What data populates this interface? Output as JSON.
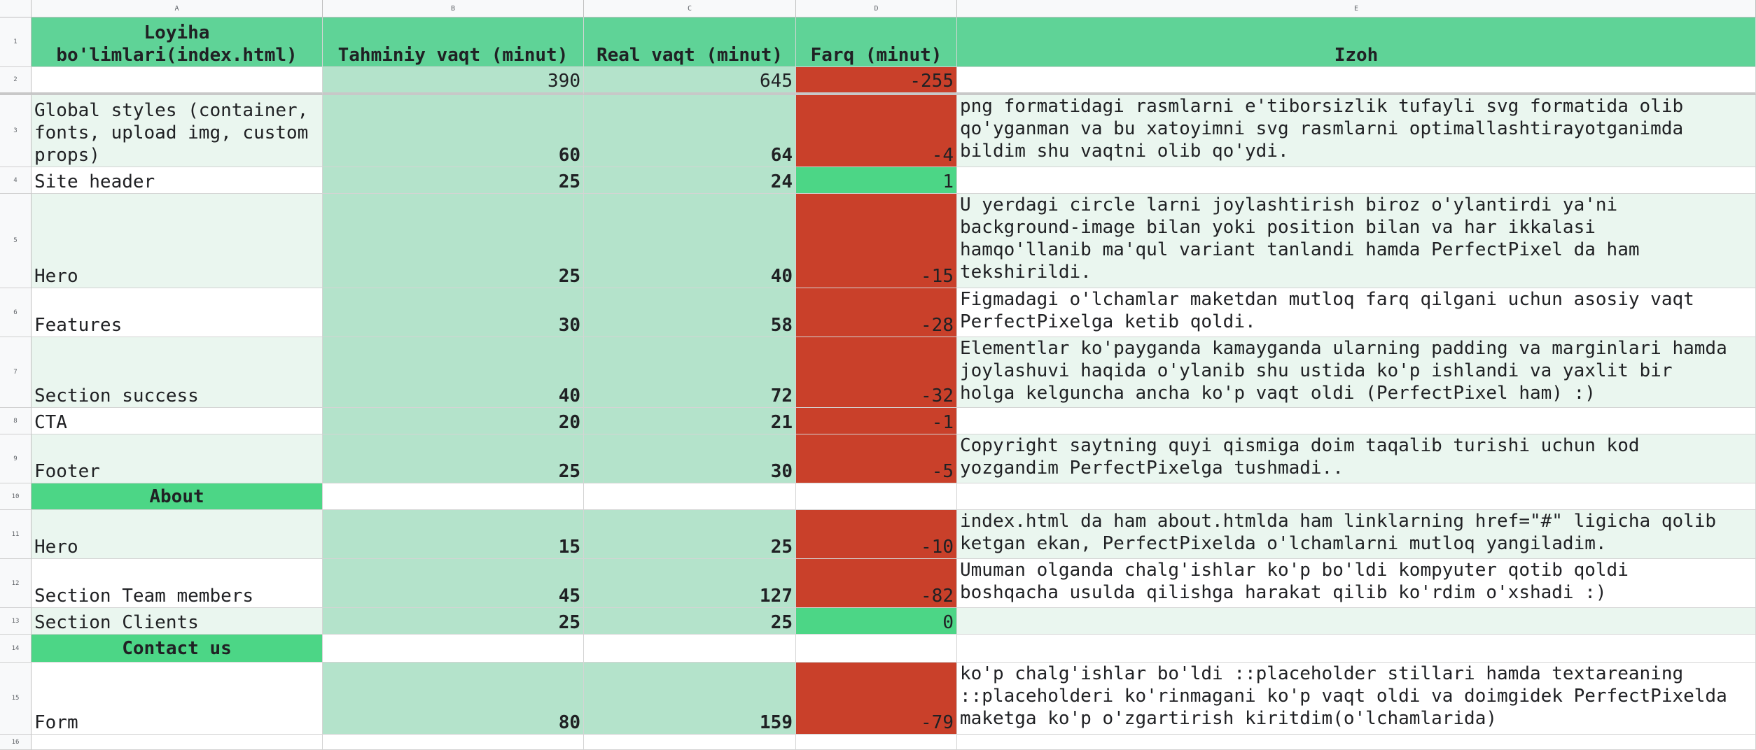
{
  "columns": [
    "A",
    "B",
    "C",
    "D",
    "E"
  ],
  "header": {
    "col_a": "Loyiha\nbo'limlari(index.html)",
    "col_b": "Tahminiy vaqt (minut)",
    "col_c": "Real vaqt (minut)",
    "col_d": "Farq (minut)",
    "col_e": "Izoh"
  },
  "totals": {
    "estimated": "390",
    "real": "645",
    "diff": "-255"
  },
  "rows": [
    {
      "num": "3",
      "part": "Global styles (container,\nfonts, upload img, custom\nprops)",
      "estimated": "60",
      "real": "64",
      "diff": "-4",
      "note": "png formatidagi rasmlarni e'tiborsizlik tufayli svg formatida olib\nqo'yganman va bu xatoyimni svg rasmlarni optimallashtirayotganimda\nbildim shu vaqtni olib qo'ydi."
    },
    {
      "num": "4",
      "part": "Site header",
      "estimated": "25",
      "real": "24",
      "diff": "1",
      "note": ""
    },
    {
      "num": "5",
      "part": "Hero",
      "estimated": "25",
      "real": "40",
      "diff": "-15",
      "note": "U yerdagi circle larni joylashtirish biroz o'ylantirdi ya'ni\nbackground-image bilan yoki position bilan va har ikkalasi\nhamqo'llanib ma'qul variant tanlandi hamda PerfectPixel da ham\ntekshirildi."
    },
    {
      "num": "6",
      "part": "Features",
      "estimated": "30",
      "real": "58",
      "diff": "-28",
      "note": "Figmadagi o'lchamlar maketdan mutloq farq qilgani uchun asosiy vaqt\nPerfectPixelga ketib qoldi."
    },
    {
      "num": "7",
      "part": "Section success",
      "estimated": "40",
      "real": "72",
      "diff": "-32",
      "note": "Elementlar ko'payganda kamayganda ularning padding va marginlari hamda\njoylashuvi haqida o'ylanib shu ustida ko'p ishlandi va yaxlit bir\nholga kelguncha ancha ko'p vaqt oldi (PerfectPixel ham) :)"
    },
    {
      "num": "8",
      "part": "CTA",
      "estimated": "20",
      "real": "21",
      "diff": "-1",
      "note": ""
    },
    {
      "num": "9",
      "part": "Footer",
      "estimated": "25",
      "real": "30",
      "diff": "-5",
      "note": "Copyright saytning quyi qismiga doim taqalib turishi uchun kod\nyozgandim PerfectPixelga tushmadi.."
    },
    {
      "num": "11",
      "part": "Hero",
      "estimated": "15",
      "real": "25",
      "diff": "-10",
      "note": "index.html da ham about.htmlda ham linklarning href=\"#\" ligicha qolib\nketgan ekan, PerfectPixelda o'lchamlarni mutloq yangiladim."
    },
    {
      "num": "12",
      "part": "Section Team members",
      "estimated": "45",
      "real": "127",
      "diff": "-82",
      "note": "Umuman olganda chalg'ishlar ko'p bo'ldi kompyuter qotib qoldi\nboshqacha usulda qilishga harakat qilib ko'rdim o'xshadi :)"
    },
    {
      "num": "13",
      "part": "Section Clients",
      "estimated": "25",
      "real": "25",
      "diff": "0",
      "note": ""
    },
    {
      "num": "15",
      "part": "Form",
      "estimated": "80",
      "real": "159",
      "diff": "-79",
      "note": "ko'p chalg'ishlar bo'ldi ::placeholder stillari hamda textareaning\n::placeholderi ko'rinmagani ko'p vaqt oldi va doimgidek PerfectPixelda\nmaketga ko'p o'zgartirish kiritdim(o'lchamlarida)"
    }
  ],
  "sections": {
    "about": "About",
    "contact": "Contact us"
  },
  "row_numbers": [
    "1",
    "2",
    "10",
    "14",
    "16"
  ],
  "colors": {
    "header_green": "#5fd397",
    "light_green": "#b4e3cb",
    "negative_red": "#c9402a",
    "positive_green": "#4cd686"
  }
}
